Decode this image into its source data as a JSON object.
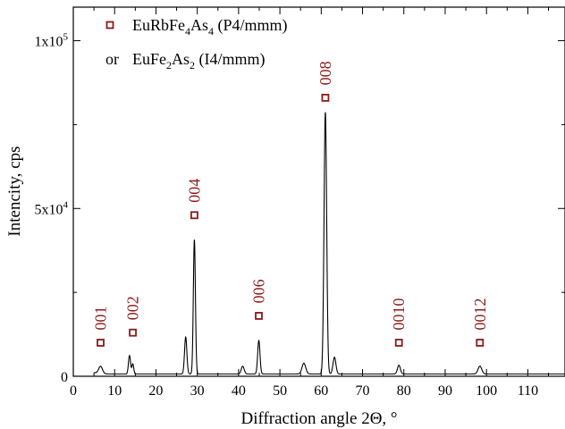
{
  "chart_data": {
    "type": "line",
    "xlabel": "Diffraction angle 2Θ, °",
    "ylabel": "Intencity, cps",
    "xlim": [
      0,
      119
    ],
    "ylim": [
      0,
      110000
    ],
    "x_ticks": [
      0,
      10,
      20,
      30,
      40,
      50,
      60,
      70,
      80,
      90,
      100,
      110
    ],
    "y_ticks": [
      {
        "value": 0,
        "base": "0",
        "exp": ""
      },
      {
        "value": 50000,
        "base": "5x10",
        "exp": "4"
      },
      {
        "value": 100000,
        "base": "1x10",
        "exp": "5"
      }
    ],
    "grid": false,
    "colors": {
      "line": "#000000",
      "marker": "#8b1a1a"
    },
    "legend": {
      "placement": "top-left",
      "entries": [
        {
          "prefix": "",
          "parts": [
            [
              "EuRbFe",
              ""
            ],
            [
              "4",
              "sub"
            ],
            [
              "As",
              ""
            ],
            [
              "4",
              "sub"
            ],
            [
              " (P4/mmm)",
              ""
            ]
          ]
        },
        {
          "prefix": "or",
          "parts": [
            [
              "EuFe",
              ""
            ],
            [
              "2",
              "sub"
            ],
            [
              "As",
              ""
            ],
            [
              "2",
              "sub"
            ],
            [
              " (I4/mmm)",
              ""
            ]
          ]
        }
      ]
    },
    "series": [
      {
        "type": "line",
        "baseline": 700,
        "peaks": [
          {
            "center": 6.6,
            "height": 2100,
            "width": 0.45
          },
          {
            "center": 13.6,
            "height": 5500,
            "width": 0.25
          },
          {
            "center": 14.4,
            "height": 3000,
            "width": 0.22
          },
          {
            "center": 27.2,
            "height": 11000,
            "width": 0.28
          },
          {
            "center": 29.3,
            "height": 40000,
            "width": 0.25
          },
          {
            "center": 41.0,
            "height": 2300,
            "width": 0.35
          },
          {
            "center": 44.9,
            "height": 10000,
            "width": 0.28
          },
          {
            "center": 55.8,
            "height": 3200,
            "width": 0.45
          },
          {
            "center": 61.0,
            "height": 78000,
            "width": 0.32
          },
          {
            "center": 63.2,
            "height": 5000,
            "width": 0.35
          },
          {
            "center": 78.8,
            "height": 2600,
            "width": 0.35
          },
          {
            "center": 98.4,
            "height": 2300,
            "width": 0.45
          }
        ]
      },
      {
        "type": "scatter",
        "marker": "open-square",
        "points": [
          {
            "x": 6.6,
            "y": 10000,
            "label": "001"
          },
          {
            "x": 14.4,
            "y": 13000,
            "label": "002"
          },
          {
            "x": 29.3,
            "y": 48000,
            "label": "004"
          },
          {
            "x": 44.9,
            "y": 18000,
            "label": "006"
          },
          {
            "x": 61.0,
            "y": 83000,
            "label": "008"
          },
          {
            "x": 78.8,
            "y": 10000,
            "label": "0010"
          },
          {
            "x": 98.4,
            "y": 10000,
            "label": "0012"
          }
        ]
      }
    ]
  }
}
